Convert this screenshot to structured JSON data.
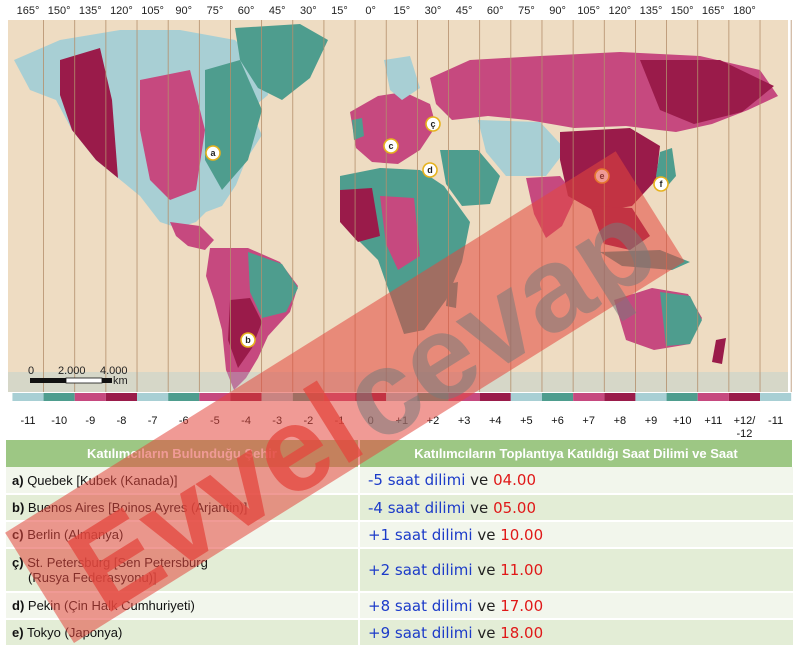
{
  "map": {
    "top_longitudes": [
      "165°",
      "150°",
      "135°",
      "120°",
      "105°",
      "90°",
      "75°",
      "60°",
      "45°",
      "30°",
      "15°",
      "0°",
      "15°",
      "30°",
      "45°",
      "60°",
      "75°",
      "90°",
      "105°",
      "120°",
      "135°",
      "150°",
      "165°",
      "180°"
    ],
    "bottom_zones": [
      "-11",
      "-10",
      "-9",
      "-8",
      "-7",
      "-6",
      "-5",
      "-4",
      "-3",
      "-2",
      "-1",
      "0",
      "+1",
      "+2",
      "+3",
      "+4",
      "+5",
      "+6",
      "+7",
      "+8",
      "+9",
      "+10",
      "+11",
      "+12/",
      "-11"
    ],
    "bottom_extra": "-12",
    "scale": {
      "zero": "0",
      "mid": "2.000",
      "max": "4.000",
      "unit": "km"
    },
    "markers": [
      "a",
      "b",
      "c",
      "ç",
      "d",
      "e",
      "f"
    ],
    "colors": {
      "ocean": "#eedcc2",
      "teal": "#4e9d8e",
      "pink": "#c6497f",
      "crimson": "#9a1b4a",
      "lightblue": "#a8cfd4",
      "grid": "#b48f6c"
    }
  },
  "watermark": {
    "red": "Evvel",
    "gray": "cevap"
  },
  "table": {
    "headers": [
      "Katılımcıların Bulunduğu Şehir",
      "Katılımcıların Toplantıya Katıldığı Saat Dilimi ve Saat"
    ],
    "rows": [
      {
        "key": "a)",
        "city": "Quebek [Kubek (Kanada)]",
        "city2": "",
        "zone": "-5 saat dilimi",
        "ve": "ve",
        "time": "04.00"
      },
      {
        "key": "b)",
        "city": "Buenos Aires [Boinos Ayres (Arjantin)]",
        "city2": "",
        "zone": "-4 saat dilimi",
        "ve": "ve",
        "time": "05.00"
      },
      {
        "key": "c)",
        "city": "Berlin (Almanya)",
        "city2": "",
        "zone": "+1 saat dilimi",
        "ve": "ve",
        "time": "10.00"
      },
      {
        "key": "ç)",
        "city": "St. Petersburg [Sen Petersburg",
        "city2": "(Rusya Federasyonu)]",
        "zone": "+2 saat dilimi",
        "ve": "ve",
        "time": "11.00"
      },
      {
        "key": "d)",
        "city": "Pekin (Çin Halk Cumhuriyeti)",
        "city2": "",
        "zone": "+8 saat dilimi",
        "ve": "ve",
        "time": "17.00"
      },
      {
        "key": "e)",
        "city": "Tokyo (Japonya)",
        "city2": "",
        "zone": "+9 saat dilimi",
        "ve": "ve",
        "time": "18.00"
      }
    ]
  }
}
